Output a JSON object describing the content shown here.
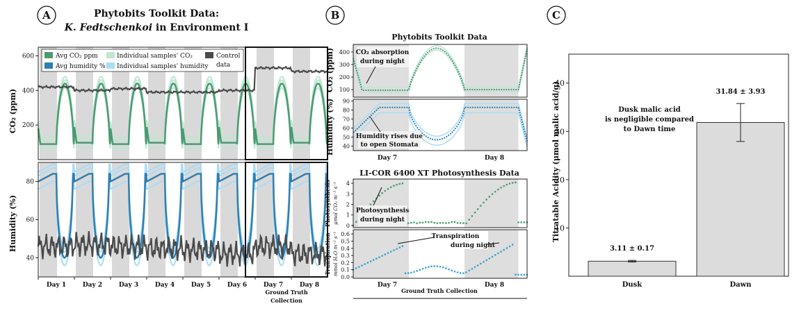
{
  "panels": {
    "a": "A",
    "b": "B",
    "c": "C"
  },
  "panel_a": {
    "title_line1": "Phytobits Toolkit Data:",
    "title_line2_italic": "K. Fedtschenkoi",
    "title_line2_rest": " in Environment I",
    "top_ylabel": "CO₂ (ppm)",
    "bottom_ylabel": "Humidity (%)",
    "top_yticks": [
      "200",
      "400",
      "600"
    ],
    "bottom_yticks": [
      "40",
      "60",
      "80"
    ],
    "days": [
      "Day 1",
      "Day 2",
      "Day 3",
      "Day 4",
      "Day 5",
      "Day 6",
      "Day 7",
      "Day 8"
    ],
    "ground_truth_line1": "Ground Truth",
    "ground_truth_line2": "Collection",
    "legend": {
      "avg_co2": "Avg CO₂ ppm",
      "avg_hum": "Avg humidity  %",
      "ind_co2": "Individual samples' CO₂",
      "ind_hum": "Individual samples' humidity",
      "control_line1": "Control",
      "control_line2": "data"
    },
    "colors": {
      "co2": "#4a9a72",
      "co2_light": "#bfe6d2",
      "hum": "#2f7fb2",
      "hum_light": "#a9dcf6",
      "control": "#4a4a4a",
      "shade": "#d9d9d9"
    }
  },
  "panel_b": {
    "top_title": "Phytobits Toolkit Data",
    "co2_ylabel": "CO₂ (ppm)",
    "hum_ylabel": "Humidity (%)",
    "co2_yticks": [
      "100",
      "200",
      "300",
      "400"
    ],
    "hum_yticks": [
      "40",
      "50",
      "60",
      "70",
      "80",
      "90"
    ],
    "annot_co2_line1": "CO₂ absorption",
    "annot_co2_line2": "during night",
    "annot_hum_line1": "Humidity rises due",
    "annot_hum_line2": "to open Stomata",
    "day7": "Day 7",
    "day8": "Day 8",
    "licor_title": "LI-COR 6400 XT Photosynthesis Data",
    "photo_ylabel1": "Photosynthesis",
    "photo_ylabel2": "μmol CO₂ m⁻² s⁻¹",
    "photo_yticks": [
      "0",
      "1",
      "2",
      "3",
      "4"
    ],
    "trans_ylabel1": "Transpiration",
    "trans_ylabel2": "mmol H₂O m⁻² s⁻¹",
    "trans_yticks": [
      "0.0",
      "0.1",
      "0.2",
      "0.3",
      "0.4",
      "0.5",
      "0.6"
    ],
    "annot_photo_line1": "Photosynthesis",
    "annot_photo_line2": "during night",
    "annot_trans_line1": "Transpiration",
    "annot_trans_line2": "during night",
    "ground_truth": "Ground Truth Collection"
  },
  "panel_c": {
    "ylabel": "Titratable Acidity (μmol malic acid/g)",
    "yticks": [
      "10",
      "20",
      "30",
      "40"
    ],
    "annotation_line1": "Dusk malic acid",
    "annotation_line2": "is negligible compared",
    "annotation_line3": "to Dawn time",
    "bar_labels": [
      "3.11 ± 0.17",
      "31.84 ± 3.93"
    ]
  },
  "chart_data": [
    {
      "type": "line",
      "title": "Phytobits Toolkit Data: K. Fedtschenkoi in Environment I",
      "ylabel": "CO₂ (ppm)",
      "ylim": [
        0,
        650
      ],
      "categories": [
        "Day 1",
        "Day 2",
        "Day 3",
        "Day 4",
        "Day 5",
        "Day 6",
        "Day 7",
        "Day 8"
      ],
      "series": [
        {
          "name": "Avg CO₂ ppm",
          "day_values": [
            90,
            440
          ],
          "night_values": [
            90,
            100
          ]
        },
        {
          "name": "Control data",
          "values": [
            420,
            400,
            410,
            390,
            390,
            400,
            530,
            510
          ]
        }
      ]
    },
    {
      "type": "line",
      "ylabel": "Humidity (%)",
      "ylim": [
        30,
        90
      ],
      "categories": [
        "Day 1",
        "Day 2",
        "Day 3",
        "Day 4",
        "Day 5",
        "Day 6",
        "Day 7",
        "Day 8"
      ],
      "series": [
        {
          "name": "Avg humidity %",
          "night_values": [
            80,
            84
          ],
          "day_values": [
            40,
            48
          ]
        },
        {
          "name": "Control data",
          "values": [
            46,
            47,
            46,
            45,
            44,
            42,
            46,
            42
          ]
        }
      ]
    },
    {
      "type": "scatter",
      "title": "LI-COR 6400 XT Photosynthesis Data",
      "ylabel": "Photosynthesis μmol CO₂ m⁻² s⁻¹",
      "ylim": [
        0,
        4.3
      ],
      "x": [
        "Day 7",
        "Day 8"
      ],
      "series": [
        {
          "name": "Photosynthesis",
          "peak_values": [
            4.0,
            4.1
          ]
        }
      ]
    },
    {
      "type": "scatter",
      "ylabel": "Transpiration mmol H₂O m⁻² s⁻¹",
      "ylim": [
        0,
        0.65
      ],
      "x": [
        "Day 7",
        "Day 8"
      ],
      "series": [
        {
          "name": "Transpiration",
          "peak_values": [
            0.45,
            0.47
          ]
        }
      ]
    },
    {
      "type": "bar",
      "categories": [
        "Dusk",
        "Dawn"
      ],
      "values": [
        3.11,
        31.84
      ],
      "errors": [
        0.17,
        3.93
      ],
      "ylabel": "Titratable Acidity (μmol malic acid/g)",
      "ylim": [
        0,
        46
      ]
    }
  ]
}
